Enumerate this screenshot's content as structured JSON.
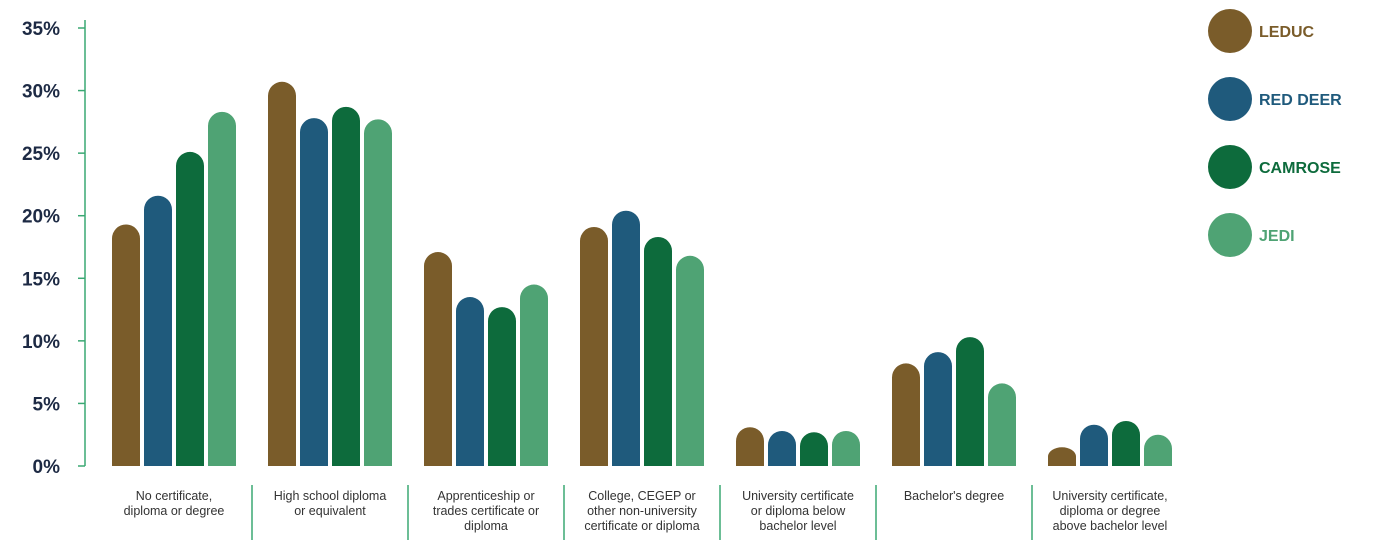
{
  "chart_data": {
    "type": "bar",
    "title": "",
    "xlabel": "",
    "ylabel": "",
    "ylim": [
      0,
      35
    ],
    "y_ticks": [
      "0%",
      "5%",
      "10%",
      "15%",
      "20%",
      "25%",
      "30%",
      "35%"
    ],
    "y_tick_values": [
      0,
      5,
      10,
      15,
      20,
      25,
      30,
      35
    ],
    "categories": [
      [
        "No certificate,",
        "diploma or degree"
      ],
      [
        "High school diploma",
        "or equivalent"
      ],
      [
        "Apprenticeship or",
        "trades certificate or",
        "diploma"
      ],
      [
        "College, CEGEP or",
        "other non-university",
        "certificate or diploma"
      ],
      [
        "University certificate",
        "or diploma below",
        "bachelor level"
      ],
      [
        "Bachelor's degree"
      ],
      [
        "University certificate,",
        "diploma or degree",
        "above bachelor level"
      ]
    ],
    "series": [
      {
        "name": "LEDUC",
        "color": "#7a5c2a",
        "values": [
          19.3,
          30.7,
          17.1,
          19.1,
          3.1,
          8.2,
          1.5
        ]
      },
      {
        "name": "RED DEER",
        "color": "#1f5a7c",
        "values": [
          21.6,
          27.8,
          13.5,
          20.4,
          2.8,
          9.1,
          3.3
        ]
      },
      {
        "name": "CAMROSE",
        "color": "#0d6b3c",
        "values": [
          25.1,
          28.7,
          12.7,
          18.3,
          2.7,
          10.3,
          3.6
        ]
      },
      {
        "name": "JEDI",
        "color": "#4fa374",
        "values": [
          28.3,
          27.7,
          14.5,
          16.8,
          2.8,
          6.6,
          2.5
        ]
      }
    ],
    "grid": false,
    "legend_position": "right"
  }
}
